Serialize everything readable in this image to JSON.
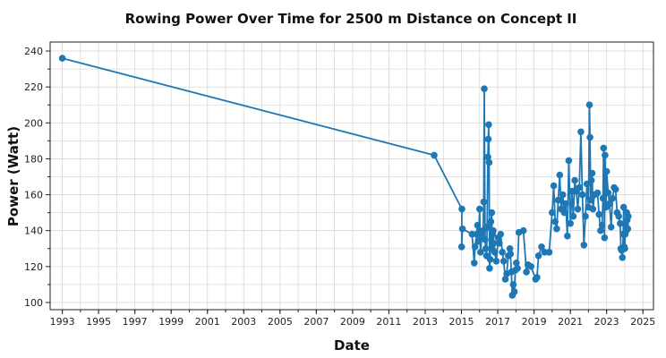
{
  "chart_data": {
    "type": "line",
    "title": "Rowing Power Over Time for 2500 m Distance on Concept II",
    "xlabel": "Date",
    "ylabel": "Power (Watt)",
    "xlim": [
      "1992-05-01",
      "2025-08-01"
    ],
    "ylim": [
      96,
      245
    ],
    "x_ticks": [
      "1993",
      "1995",
      "1997",
      "1999",
      "2001",
      "2003",
      "2005",
      "2007",
      "2009",
      "2011",
      "2013",
      "2015",
      "2017",
      "2019",
      "2021",
      "2023",
      "2025"
    ],
    "y_ticks": [
      100,
      120,
      140,
      160,
      180,
      200,
      220,
      240
    ],
    "grid": true,
    "marker": "circle",
    "color": "#1f77b4",
    "series": [
      {
        "points": [
          [
            "1993-01-01",
            236
          ],
          [
            "2013-07-01",
            182
          ],
          [
            "2015-01-10",
            152
          ],
          [
            "2015-01-05",
            131
          ],
          [
            "2015-01-20",
            141
          ],
          [
            "2015-08-01",
            138
          ],
          [
            "2015-09-15",
            122
          ],
          [
            "2015-10-01",
            131
          ],
          [
            "2015-11-01",
            138
          ],
          [
            "2015-11-20",
            143
          ],
          [
            "2015-12-10",
            134
          ],
          [
            "2016-01-01",
            152
          ],
          [
            "2016-01-20",
            128
          ],
          [
            "2016-02-15",
            137
          ],
          [
            "2016-03-10",
            140
          ],
          [
            "2016-03-25",
            156
          ],
          [
            "2016-04-05",
            219
          ],
          [
            "2016-04-20",
            135
          ],
          [
            "2016-05-05",
            130
          ],
          [
            "2016-05-20",
            126
          ],
          [
            "2016-06-01",
            142
          ],
          [
            "2016-06-15",
            181
          ],
          [
            "2016-06-25",
            191
          ],
          [
            "2016-07-01",
            199
          ],
          [
            "2016-07-10",
            178
          ],
          [
            "2016-07-20",
            119
          ],
          [
            "2016-08-01",
            124
          ],
          [
            "2016-08-15",
            145
          ],
          [
            "2016-09-01",
            150
          ],
          [
            "2016-09-10",
            130
          ],
          [
            "2016-09-20",
            138
          ],
          [
            "2016-10-01",
            140
          ],
          [
            "2016-10-15",
            133
          ],
          [
            "2016-11-01",
            128
          ],
          [
            "2016-12-01",
            123
          ],
          [
            "2017-01-10",
            136
          ],
          [
            "2017-02-01",
            133
          ],
          [
            "2017-03-01",
            138
          ],
          [
            "2017-04-01",
            128
          ],
          [
            "2017-05-01",
            123
          ],
          [
            "2017-06-01",
            113
          ],
          [
            "2017-07-01",
            116
          ],
          [
            "2017-08-01",
            126
          ],
          [
            "2017-09-01",
            130
          ],
          [
            "2017-09-15",
            127
          ],
          [
            "2017-10-01",
            117
          ],
          [
            "2017-10-20",
            104
          ],
          [
            "2017-11-10",
            110
          ],
          [
            "2017-12-01",
            106
          ],
          [
            "2017-12-20",
            118
          ],
          [
            "2018-01-10",
            122
          ],
          [
            "2018-02-01",
            119
          ],
          [
            "2018-03-01",
            139
          ],
          [
            "2018-06-01",
            140
          ],
          [
            "2018-08-01",
            117
          ],
          [
            "2018-09-01",
            121
          ],
          [
            "2018-11-01",
            120
          ],
          [
            "2019-02-01",
            113
          ],
          [
            "2019-03-01",
            114
          ],
          [
            "2019-04-01",
            126
          ],
          [
            "2019-06-01",
            131
          ],
          [
            "2019-08-01",
            128
          ],
          [
            "2019-11-01",
            128
          ],
          [
            "2020-01-01",
            150
          ],
          [
            "2020-02-01",
            165
          ],
          [
            "2020-03-01",
            145
          ],
          [
            "2020-04-01",
            141
          ],
          [
            "2020-05-01",
            157
          ],
          [
            "2020-06-01",
            171
          ],
          [
            "2020-07-01",
            152
          ],
          [
            "2020-08-01",
            160
          ],
          [
            "2020-09-01",
            150
          ],
          [
            "2020-10-01",
            155
          ],
          [
            "2020-11-01",
            137
          ],
          [
            "2020-12-01",
            179
          ],
          [
            "2021-01-01",
            144
          ],
          [
            "2021-02-01",
            162
          ],
          [
            "2021-03-01",
            148
          ],
          [
            "2021-04-01",
            168
          ],
          [
            "2021-05-01",
            162
          ],
          [
            "2021-06-01",
            152
          ],
          [
            "2021-07-01",
            164
          ],
          [
            "2021-08-01",
            195
          ],
          [
            "2021-09-01",
            160
          ],
          [
            "2021-10-01",
            132
          ],
          [
            "2021-11-01",
            148
          ],
          [
            "2021-12-01",
            166
          ],
          [
            "2022-01-01",
            153
          ],
          [
            "2022-01-20",
            210
          ],
          [
            "2022-02-01",
            192
          ],
          [
            "2022-02-15",
            157
          ],
          [
            "2022-03-01",
            168
          ],
          [
            "2022-03-15",
            172
          ],
          [
            "2022-04-01",
            152
          ],
          [
            "2022-05-01",
            160
          ],
          [
            "2022-07-01",
            161
          ],
          [
            "2022-08-01",
            149
          ],
          [
            "2022-09-01",
            140
          ],
          [
            "2022-10-01",
            143
          ],
          [
            "2022-10-20",
            158
          ],
          [
            "2022-11-01",
            186
          ],
          [
            "2022-11-20",
            136
          ],
          [
            "2022-12-01",
            182
          ],
          [
            "2022-12-20",
            153
          ],
          [
            "2023-01-01",
            173
          ],
          [
            "2023-02-01",
            161
          ],
          [
            "2023-03-01",
            155
          ],
          [
            "2023-04-01",
            142
          ],
          [
            "2023-05-01",
            158
          ],
          [
            "2023-06-01",
            164
          ],
          [
            "2023-07-01",
            163
          ],
          [
            "2023-08-01",
            150
          ],
          [
            "2023-09-01",
            148
          ],
          [
            "2023-10-01",
            144
          ],
          [
            "2023-10-15",
            130
          ],
          [
            "2023-11-01",
            129
          ],
          [
            "2023-11-15",
            125
          ],
          [
            "2023-12-01",
            138
          ],
          [
            "2023-12-10",
            153
          ],
          [
            "2023-12-20",
            131
          ],
          [
            "2024-01-01",
            130
          ],
          [
            "2024-01-10",
            138
          ],
          [
            "2024-01-20",
            143
          ],
          [
            "2024-02-01",
            140
          ],
          [
            "2024-02-10",
            150
          ],
          [
            "2024-02-20",
            146
          ],
          [
            "2024-03-01",
            141
          ],
          [
            "2024-03-10",
            148
          ]
        ]
      }
    ]
  }
}
